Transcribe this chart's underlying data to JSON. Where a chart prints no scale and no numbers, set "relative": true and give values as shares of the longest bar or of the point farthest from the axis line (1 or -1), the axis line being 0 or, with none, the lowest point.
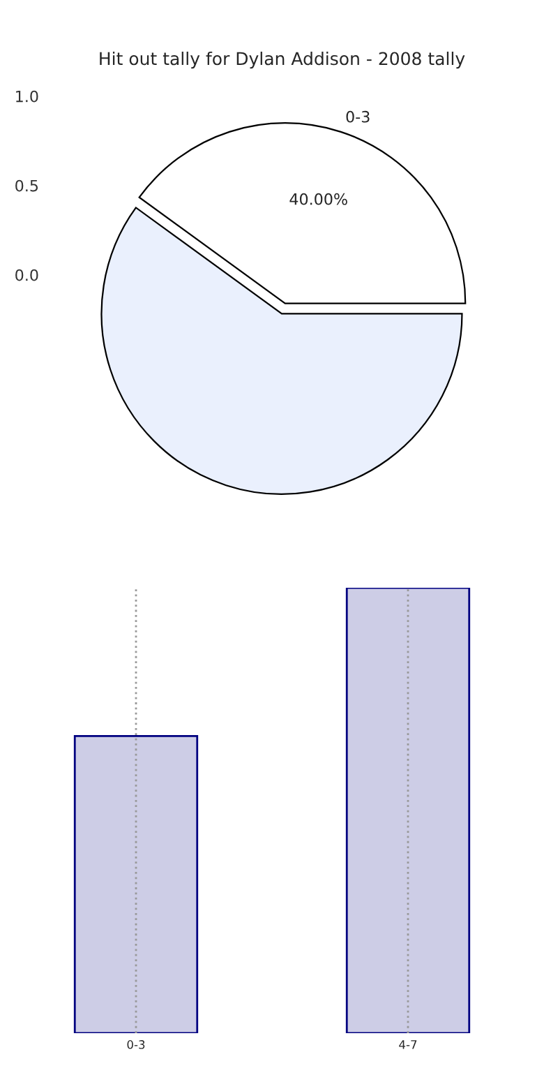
{
  "chart_data": [
    {
      "type": "pie",
      "title": "Hit out tally for Dylan Addison - 2008 tally",
      "categories": [
        "0-3",
        null
      ],
      "values": [
        40,
        60
      ],
      "colors": [
        "#ffffff",
        "#eaf0fd"
      ],
      "value_labels": [
        "40.00%",
        null
      ],
      "annotations": [
        "1.0",
        "0.5",
        "0.0"
      ]
    },
    {
      "type": "bar",
      "categories": [
        "0-3",
        "4-7"
      ],
      "values": [
        0.667,
        1
      ],
      "color": "#cdcde6",
      "relative": true,
      "grid": "x",
      "tick_labels": "x"
    }
  ]
}
